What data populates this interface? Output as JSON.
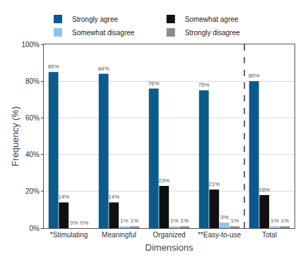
{
  "chart_data": {
    "type": "bar",
    "x_label": "Dimensions",
    "y_label": "Frequency (%)",
    "categories": [
      "*Stimulating",
      "Meaningful",
      "Organized",
      "**Easy-to-use",
      "Total"
    ],
    "series": [
      {
        "name": "Strongly agree",
        "color": "#0a5b8c",
        "values": [
          85,
          84,
          76,
          75,
          80
        ],
        "value_labels": [
          "85%",
          "84%",
          "76%",
          "75%",
          "80%"
        ]
      },
      {
        "name": "Somewhat agree",
        "color": "#111111",
        "values": [
          14,
          14,
          23,
          21,
          18
        ],
        "value_labels": [
          "14%",
          "14%",
          "23%",
          "21%",
          "18%"
        ]
      },
      {
        "name": "Somewhat disagree",
        "color": "#8fc3e6",
        "values": [
          0,
          1,
          1,
          3,
          1
        ],
        "value_labels": [
          "0%",
          "1%",
          "1%",
          "3%",
          "1%"
        ]
      },
      {
        "name": "Strongly disagree",
        "color": "#8c8c8c",
        "values": [
          0,
          1,
          1,
          1,
          1
        ],
        "value_labels": [
          "0%",
          "1%",
          "1%",
          "1%",
          "1%"
        ]
      }
    ],
    "ylim": [
      0,
      100
    ],
    "yticks": [
      {
        "value": 0,
        "label": "0%"
      },
      {
        "value": 20,
        "label": "20%"
      },
      {
        "value": 40,
        "label": "40%"
      },
      {
        "value": 60,
        "label": "60%"
      },
      {
        "value": 80,
        "label": "80%"
      },
      {
        "value": 100,
        "label": "100%"
      }
    ],
    "grid": true,
    "legend": "top",
    "data_labels": true
  }
}
